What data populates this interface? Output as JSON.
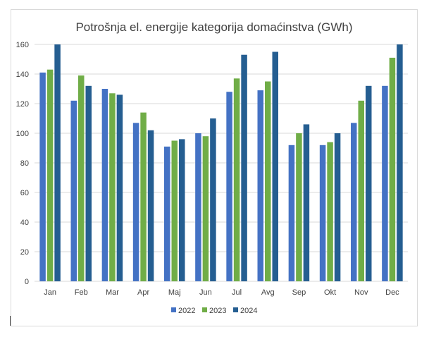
{
  "chart_data": {
    "type": "bar",
    "title": "Potrošnja el. energije kategorija domaćinstva (GWh)",
    "categories": [
      "Jan",
      "Feb",
      "Mar",
      "Apr",
      "Maj",
      "Jun",
      "Jul",
      "Avg",
      "Sep",
      "Okt",
      "Nov",
      "Dec"
    ],
    "series": [
      {
        "name": "2022",
        "color": "#4472c4",
        "values": [
          141,
          122,
          130,
          107,
          91,
          100,
          128,
          129,
          92,
          92,
          107,
          132
        ]
      },
      {
        "name": "2023",
        "color": "#70ad47",
        "values": [
          143,
          139,
          127,
          114,
          95,
          98,
          137,
          135,
          100,
          94,
          122,
          151
        ]
      },
      {
        "name": "2024",
        "color": "#255e91",
        "values": [
          160,
          132,
          126,
          102,
          96,
          110,
          153,
          155,
          106,
          100,
          132,
          160
        ]
      }
    ],
    "ylim": [
      0,
      160
    ],
    "yticks": [
      "0",
      "20",
      "40",
      "60",
      "80",
      "100",
      "120",
      "140",
      "160"
    ],
    "grid": true,
    "legend_position": "bottom"
  }
}
